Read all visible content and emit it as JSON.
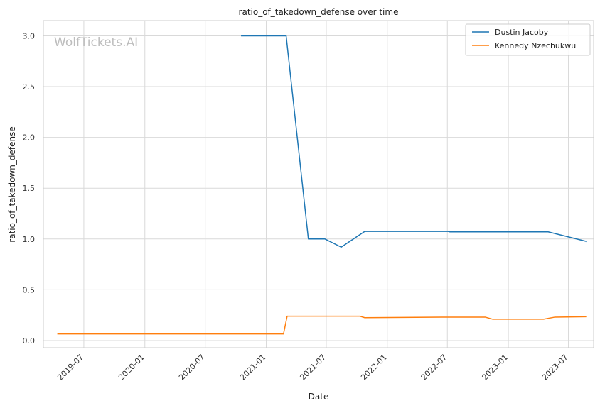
{
  "chart_data": {
    "type": "line",
    "title": "ratio_of_takedown_defense over time",
    "xlabel": "Date",
    "ylabel": "ratio_of_takedown_defense",
    "watermark": "WolfTickets.AI",
    "xlim": [
      "2019-03-01",
      "2023-09-15"
    ],
    "ylim": [
      -0.07,
      3.15
    ],
    "grid": true,
    "legend_position": "top-right",
    "x_ticks": [
      "2019-07",
      "2020-01",
      "2020-07",
      "2021-01",
      "2021-07",
      "2022-01",
      "2022-07",
      "2023-01",
      "2023-07"
    ],
    "y_ticks": [
      "0.0",
      "0.5",
      "1.0",
      "1.5",
      "2.0",
      "2.5",
      "3.0"
    ],
    "series": [
      {
        "name": "Dustin Jacoby",
        "color": "#1f77b4",
        "points": [
          {
            "x": "2020-10-17",
            "y": 3.0
          },
          {
            "x": "2021-03-02",
            "y": 3.0
          },
          {
            "x": "2021-05-08",
            "y": 1.0
          },
          {
            "x": "2021-06-27",
            "y": 1.0
          },
          {
            "x": "2021-08-15",
            "y": 0.92
          },
          {
            "x": "2021-10-25",
            "y": 1.075
          },
          {
            "x": "2022-07-02",
            "y": 1.075
          },
          {
            "x": "2022-07-09",
            "y": 1.07
          },
          {
            "x": "2023-05-01",
            "y": 1.07
          },
          {
            "x": "2023-08-26",
            "y": 0.975
          }
        ]
      },
      {
        "name": "Kennedy Nzechukwu",
        "color": "#ff7f0e",
        "points": [
          {
            "x": "2019-04-12",
            "y": 0.065
          },
          {
            "x": "2021-02-22",
            "y": 0.065
          },
          {
            "x": "2021-03-05",
            "y": 0.24
          },
          {
            "x": "2021-10-10",
            "y": 0.24
          },
          {
            "x": "2021-10-25",
            "y": 0.225
          },
          {
            "x": "2022-06-14",
            "y": 0.23
          },
          {
            "x": "2022-10-24",
            "y": 0.23
          },
          {
            "x": "2022-11-15",
            "y": 0.21
          },
          {
            "x": "2023-04-17",
            "y": 0.21
          },
          {
            "x": "2023-05-20",
            "y": 0.23
          },
          {
            "x": "2023-08-26",
            "y": 0.235
          }
        ]
      }
    ]
  }
}
